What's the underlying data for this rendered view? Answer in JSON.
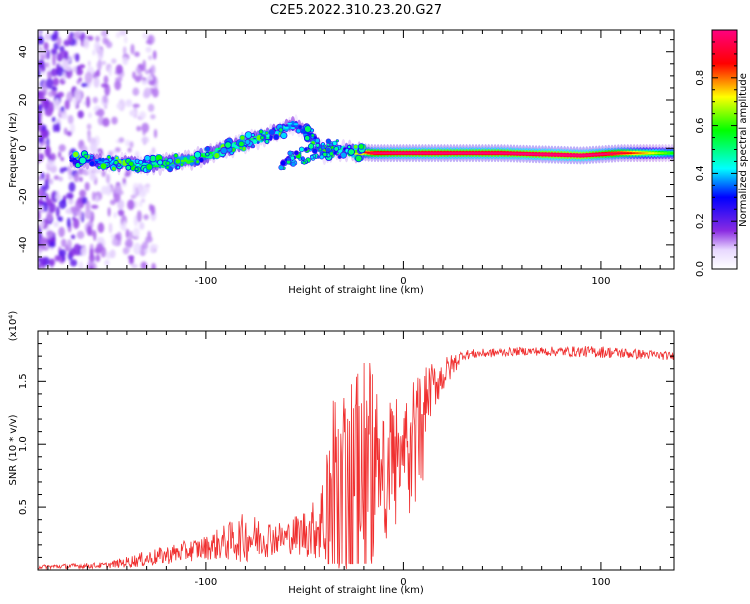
{
  "title": "C2E5.2022.310.23.20.G27",
  "chart_data": [
    {
      "type": "heatmap",
      "xlabel": "Height of straight line (km)",
      "ylabel": "Frequency (Hz)",
      "xlim": [
        -185,
        137
      ],
      "ylim": [
        -50,
        49
      ],
      "x_ticks": [
        -100,
        0,
        100
      ],
      "y_ticks": [
        40,
        20,
        0,
        -20,
        -40
      ],
      "colorbar": {
        "label": "Normalized spectral amplitude",
        "range": [
          0,
          1
        ],
        "ticks": [
          0.0,
          0.2,
          0.4,
          0.6,
          0.8
        ],
        "tick_labels": [
          "0.0",
          "0.2",
          "0.4",
          "0.6",
          "0.8"
        ],
        "colors": [
          "#ffffff",
          "#8a2be2",
          "#0000ff",
          "#00ffff",
          "#00ff00",
          "#ffff00",
          "#ff0000",
          "#ff0080"
        ]
      },
      "ridge": [
        {
          "x": -165,
          "f": -5,
          "amp": 0.25
        },
        {
          "x": -150,
          "f": -6,
          "amp": 0.35
        },
        {
          "x": -130,
          "f": -7,
          "amp": 0.45
        },
        {
          "x": -115,
          "f": -6,
          "amp": 0.55
        },
        {
          "x": -100,
          "f": -3,
          "amp": 0.5
        },
        {
          "x": -85,
          "f": 1,
          "amp": 0.45
        },
        {
          "x": -70,
          "f": 5,
          "amp": 0.45
        },
        {
          "x": -55,
          "f": 10,
          "amp": 0.35
        },
        {
          "x": -45,
          "f": 4,
          "amp": 0.3
        },
        {
          "x": -40,
          "f": -2,
          "amp": 0.4
        },
        {
          "x": -30,
          "f": -1,
          "amp": 0.45
        },
        {
          "x": -15,
          "f": -2,
          "amp": 0.85
        },
        {
          "x": 0,
          "f": -2,
          "amp": 0.9
        },
        {
          "x": 50,
          "f": -2,
          "amp": 0.9
        },
        {
          "x": 90,
          "f": -3,
          "amp": 0.95
        },
        {
          "x": 110,
          "f": -2,
          "amp": 0.8
        },
        {
          "x": 137,
          "f": -2,
          "amp": 0.5
        }
      ]
    },
    {
      "type": "line",
      "xlabel": "Height of straight line (km)",
      "ylabel": "SNR (10 * v/v)",
      "y_multiplier": "(x10⁴)",
      "xlim": [
        -185,
        137
      ],
      "ylim": [
        0,
        1.9
      ],
      "x_ticks": [
        -100,
        0,
        100
      ],
      "y_ticks": [
        0.5,
        1.0,
        1.5
      ],
      "y_tick_labels": [
        "0.5",
        "1.0",
        "1.5"
      ],
      "series": [
        {
          "color": "#f03030",
          "envelope": [
            {
              "x": -185,
              "base": 0.02,
              "spread": 0.02
            },
            {
              "x": -150,
              "base": 0.03,
              "spread": 0.03
            },
            {
              "x": -130,
              "base": 0.07,
              "spread": 0.08
            },
            {
              "x": -100,
              "base": 0.15,
              "spread": 0.12
            },
            {
              "x": -80,
              "base": 0.2,
              "spread": 0.25
            },
            {
              "x": -60,
              "base": 0.22,
              "spread": 0.15
            },
            {
              "x": -45,
              "base": 0.25,
              "spread": 0.3
            },
            {
              "x": -35,
              "base": 0.35,
              "spread": 0.7
            },
            {
              "x": -25,
              "base": 0.55,
              "spread": 0.95
            },
            {
              "x": -15,
              "base": 0.7,
              "spread": 0.6
            },
            {
              "x": -5,
              "base": 0.95,
              "spread": 0.4
            },
            {
              "x": 5,
              "base": 1.05,
              "spread": 0.45
            },
            {
              "x": 15,
              "base": 1.4,
              "spread": 0.25
            },
            {
              "x": 30,
              "base": 1.7,
              "spread": 0.05
            },
            {
              "x": 60,
              "base": 1.73,
              "spread": 0.04
            },
            {
              "x": 100,
              "base": 1.72,
              "spread": 0.06
            },
            {
              "x": 137,
              "base": 1.69,
              "spread": 0.04
            }
          ]
        }
      ]
    }
  ]
}
